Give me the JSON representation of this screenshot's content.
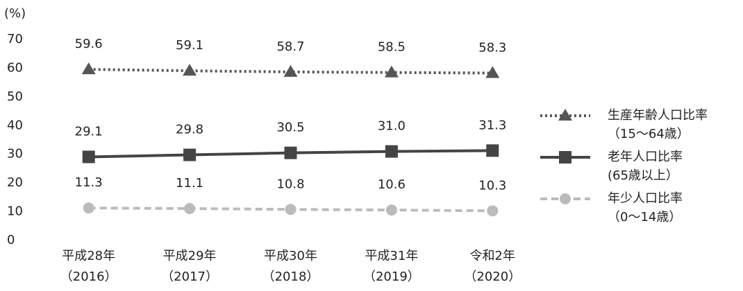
{
  "chart_data": {
    "type": "line",
    "y_label": "(%)",
    "categories": [
      [
        "平成28年",
        "（2016）"
      ],
      [
        "平成29年",
        "（2017）"
      ],
      [
        "平成30年",
        "（2018）"
      ],
      [
        "平成31年",
        "（2019）"
      ],
      [
        "令和2年",
        "（2020）"
      ]
    ],
    "series": [
      {
        "name": "生産年齢人口比率",
        "sublabel": "（15～64歳）",
        "color": "#555555",
        "marker": "triangle",
        "dash": "dotted",
        "values": [
          59.6,
          59.1,
          58.7,
          58.5,
          58.3
        ]
      },
      {
        "name": "老年人口比率",
        "sublabel": "(65歳以上）",
        "color": "#444444",
        "marker": "square",
        "dash": "solid",
        "values": [
          29.1,
          29.8,
          30.5,
          31.0,
          31.3
        ],
        "value_labels": [
          "29.1",
          "29.8",
          "30.5",
          "31.0",
          "31.3"
        ]
      },
      {
        "name": "年少人口比率",
        "sublabel": "（0～14歳）",
        "color": "#bbbbbb",
        "marker": "circle",
        "dash": "dashed",
        "values": [
          11.3,
          11.1,
          10.8,
          10.6,
          10.3
        ]
      }
    ],
    "ylim": [
      0,
      70
    ],
    "yticks": [
      0,
      10,
      20,
      30,
      40,
      50,
      60,
      70
    ],
    "grid": false,
    "legend": "right"
  }
}
